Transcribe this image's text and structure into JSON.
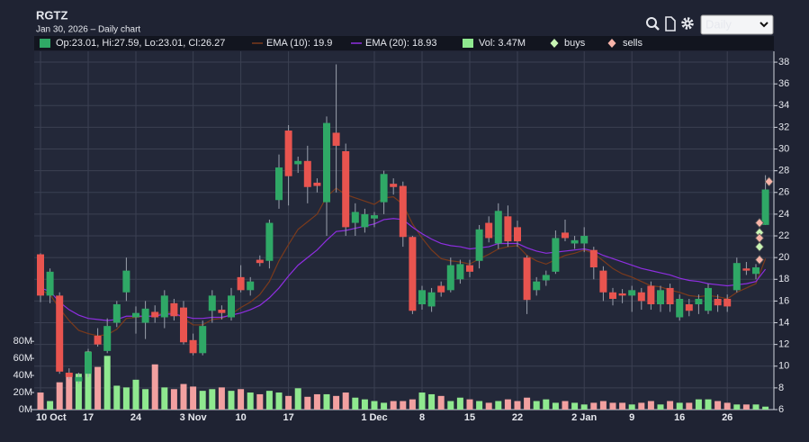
{
  "chart_data": {
    "type": "candlestick",
    "title": "RGTZ",
    "subtitle": "Jan 30, 2026 – Daily chart",
    "interval": "Daily",
    "ohlc_name": "Op:23.01, Hi:27.59, Lo:23.01, Cl:26.27",
    "up_color": "#2fa866",
    "down_color": "#e8544f",
    "categories": [
      "10 Oct",
      null,
      null,
      null,
      null,
      "17",
      null,
      null,
      null,
      null,
      "24",
      null,
      null,
      null,
      null,
      null,
      "3 Nov",
      null,
      null,
      null,
      null,
      "10",
      null,
      null,
      null,
      null,
      "17",
      null,
      null,
      null,
      null,
      null,
      null,
      null,
      null,
      "1 Dec",
      null,
      null,
      null,
      null,
      "8",
      null,
      null,
      null,
      null,
      "15",
      null,
      null,
      null,
      null,
      "22",
      null,
      null,
      null,
      null,
      null,
      null,
      "2 Jan",
      null,
      null,
      null,
      null,
      "9",
      null,
      null,
      null,
      null,
      "16",
      null,
      null,
      null,
      null,
      "26",
      null,
      null,
      null,
      null
    ],
    "open": [
      20.3,
      16.5,
      16.5,
      9.4,
      8.6,
      9.3,
      12.8,
      11.4,
      14.0,
      16.8,
      14.5,
      14.0,
      15.0,
      14.5,
      15.8,
      15.4,
      12.4,
      11.2,
      15.1,
      15.2,
      14.5,
      18.2,
      17.0,
      19.8,
      19.7,
      25.3,
      31.7,
      28.6,
      28.9,
      26.9,
      25.1,
      31.5,
      29.8,
      23.2,
      22.8,
      23.6,
      25.1,
      26.8,
      26.6,
      21.9,
      15.7,
      15.5,
      17.4,
      17.0,
      18.0,
      19.3,
      19.7,
      23.2,
      21.3,
      23.8,
      22.8,
      20.0,
      17.0,
      17.9,
      18.7,
      22.3,
      21.3,
      21.3,
      20.7,
      18.8,
      16.8,
      16.7,
      16.5,
      16.8,
      17.4,
      15.7,
      17.2,
      14.5,
      15.7,
      15.7,
      15.1,
      16.2,
      16.2,
      17.0,
      19.0,
      18.5,
      23.01
    ],
    "high": [
      20.4,
      19.0,
      16.8,
      9.8,
      9.4,
      11.6,
      13.5,
      14.4,
      16.0,
      20.0,
      15.5,
      16.0,
      15.6,
      17.0,
      16.2,
      16.0,
      13.0,
      14.2,
      17.0,
      15.6,
      17.2,
      19.3,
      18.2,
      20.2,
      23.5,
      29.5,
      32.2,
      29.3,
      30.3,
      27.3,
      33.0,
      37.8,
      30.5,
      25.0,
      24.5,
      24.2,
      28.0,
      27.3,
      27.0,
      22.0,
      17.4,
      17.2,
      17.8,
      20.0,
      19.8,
      19.8,
      23.0,
      23.8,
      25.0,
      24.8,
      23.4,
      20.2,
      18.2,
      18.8,
      22.5,
      23.5,
      22.0,
      22.8,
      21.0,
      19.2,
      17.2,
      17.1,
      17.4,
      17.2,
      17.8,
      17.4,
      17.6,
      16.6,
      16.2,
      16.6,
      17.6,
      16.6,
      16.6,
      20.0,
      19.6,
      19.4,
      27.59
    ],
    "low": [
      15.9,
      15.8,
      9.3,
      8.8,
      8.4,
      9.0,
      11.8,
      11.2,
      13.6,
      16.0,
      13.0,
      12.5,
      14.0,
      13.5,
      14.2,
      12.0,
      11.0,
      11.0,
      14.0,
      14.3,
      14.2,
      16.8,
      16.5,
      19.2,
      19.0,
      24.5,
      24.8,
      27.8,
      25.0,
      26.0,
      22.0,
      26.0,
      22.0,
      22.0,
      22.3,
      22.8,
      24.0,
      25.8,
      21.0,
      14.8,
      15.2,
      15.0,
      16.4,
      16.8,
      17.6,
      18.2,
      19.0,
      21.4,
      20.8,
      21.0,
      21.0,
      14.8,
      16.5,
      17.4,
      18.5,
      21.5,
      20.8,
      20.5,
      18.0,
      16.0,
      15.6,
      15.8,
      15.0,
      15.2,
      15.2,
      15.0,
      15.0,
      14.2,
      14.6,
      14.8,
      14.8,
      15.0,
      15.0,
      16.8,
      18.4,
      18.0,
      23.01
    ],
    "close": [
      16.5,
      18.7,
      9.5,
      9.0,
      9.0,
      11.3,
      12.0,
      13.7,
      15.7,
      18.8,
      14.9,
      15.3,
      14.5,
      16.5,
      14.6,
      12.2,
      11.2,
      13.7,
      16.5,
      14.9,
      16.5,
      17.0,
      17.8,
      19.5,
      23.2,
      28.3,
      27.5,
      28.9,
      26.5,
      26.6,
      32.4,
      30.3,
      22.8,
      24.2,
      24.0,
      23.9,
      27.7,
      26.5,
      21.9,
      15.1,
      17.0,
      16.8,
      16.8,
      19.3,
      19.4,
      18.7,
      22.6,
      21.8,
      24.3,
      21.5,
      21.5,
      16.1,
      17.8,
      18.4,
      21.8,
      21.8,
      21.6,
      22.0,
      19.1,
      16.8,
      16.2,
      16.5,
      17.0,
      16.0,
      15.7,
      17.0,
      15.7,
      16.2,
      15.1,
      16.2,
      17.2,
      15.6,
      15.5,
      19.5,
      18.8,
      19.1,
      26.27
    ],
    "ylim": [
      6,
      39
    ],
    "yticks": [
      6,
      8,
      10,
      12,
      14,
      16,
      18,
      20,
      22,
      24,
      26,
      28,
      30,
      32,
      34,
      36,
      38
    ],
    "grid": true,
    "series": [
      {
        "name": "EMA (10): 19.9",
        "color": "#7a3a1c",
        "values": [
          17.0,
          16.6,
          15.3,
          14.2,
          13.3,
          13.0,
          12.8,
          12.9,
          13.4,
          14.4,
          14.5,
          14.6,
          14.6,
          15.0,
          14.9,
          14.4,
          13.8,
          13.8,
          14.3,
          14.4,
          14.8,
          15.4,
          15.9,
          16.6,
          17.8,
          19.7,
          21.2,
          22.6,
          23.3,
          24.0,
          25.6,
          26.4,
          25.8,
          25.5,
          25.2,
          24.9,
          25.5,
          25.6,
          24.9,
          23.1,
          21.8,
          20.7,
          19.9,
          19.7,
          19.6,
          19.4,
          19.9,
          20.3,
          20.8,
          21.0,
          21.1,
          20.2,
          19.7,
          19.4,
          19.8,
          20.2,
          20.4,
          20.7,
          20.4,
          19.7,
          19.0,
          18.5,
          18.2,
          17.8,
          17.4,
          17.3,
          17.0,
          16.8,
          16.5,
          16.4,
          16.5,
          16.4,
          16.2,
          16.8,
          17.2,
          17.6,
          19.9
        ]
      },
      {
        "name": "EMA (20): 18.93",
        "color": "#8e2ee0",
        "values": [
          17.2,
          16.9,
          15.9,
          15.2,
          14.7,
          14.4,
          14.3,
          14.2,
          14.3,
          14.6,
          14.6,
          14.6,
          14.6,
          14.8,
          14.8,
          14.6,
          14.4,
          14.4,
          14.5,
          14.5,
          14.7,
          14.9,
          15.2,
          15.6,
          16.3,
          17.2,
          18.3,
          19.3,
          20.0,
          20.7,
          21.6,
          22.4,
          22.5,
          22.7,
          22.9,
          23.1,
          23.5,
          23.6,
          23.5,
          22.8,
          22.2,
          21.7,
          21.3,
          21.1,
          21.0,
          20.8,
          20.9,
          21.0,
          21.3,
          21.3,
          21.3,
          20.9,
          20.6,
          20.4,
          20.5,
          20.6,
          20.7,
          20.8,
          20.6,
          20.2,
          19.9,
          19.6,
          19.3,
          19.0,
          18.8,
          18.6,
          18.4,
          18.1,
          17.9,
          17.8,
          17.6,
          17.5,
          17.4,
          17.5,
          17.6,
          17.8,
          18.93
        ]
      }
    ],
    "volume": {
      "name": "Vol: 3.47M",
      "up_color": "#8fe88f",
      "down_color": "#f2a0a0",
      "values": [
        20,
        10,
        32,
        42,
        42,
        68,
        50,
        63,
        28,
        26,
        35,
        24,
        53,
        26,
        24,
        30,
        27,
        22,
        24,
        26,
        22,
        24,
        20,
        18,
        22,
        20,
        16,
        25,
        15,
        18,
        18,
        16,
        20,
        14,
        12,
        10,
        8,
        10,
        10,
        12,
        20,
        18,
        16,
        10,
        14,
        12,
        10,
        8,
        10,
        12,
        10,
        14,
        10,
        12,
        8,
        10,
        8,
        6,
        8,
        10,
        8,
        8,
        6,
        8,
        10,
        6,
        10,
        8,
        8,
        12,
        12,
        10,
        8,
        6,
        6,
        6,
        3.47
      ],
      "ylim": [
        0,
        420
      ],
      "yticks": [
        {
          "value": 0,
          "label": "0M"
        },
        {
          "value": 20,
          "label": "20M"
        },
        {
          "value": 40,
          "label": "40M"
        },
        {
          "value": 60,
          "label": "60M"
        },
        {
          "value": 80,
          "label": "80M"
        }
      ]
    },
    "markers": [
      {
        "name": "buys",
        "color": "#c8f5b4",
        "values": [
          null,
          null,
          null,
          null,
          null,
          null,
          null,
          null,
          null,
          null,
          null,
          null,
          null,
          null,
          null,
          null,
          null,
          null,
          null,
          null,
          null,
          null,
          null,
          null,
          null,
          null,
          null,
          null,
          null,
          null,
          null,
          null,
          null,
          null,
          null,
          null,
          null,
          null,
          null,
          null,
          null,
          null,
          null,
          null,
          null,
          null,
          null,
          null,
          null,
          null,
          null,
          null,
          null,
          null,
          null,
          null,
          null,
          null,
          null,
          null,
          null,
          null,
          null,
          null,
          null,
          null,
          null,
          null,
          null,
          null,
          null,
          null,
          null,
          null,
          null,
          [
            22.3,
            21.0
          ],
          null
        ]
      },
      {
        "name": "sells",
        "color": "#f7b3a8",
        "values": [
          null,
          null,
          null,
          null,
          null,
          null,
          null,
          null,
          null,
          null,
          null,
          null,
          null,
          null,
          null,
          null,
          null,
          null,
          null,
          null,
          null,
          null,
          null,
          null,
          null,
          null,
          null,
          null,
          null,
          null,
          null,
          null,
          null,
          null,
          null,
          null,
          null,
          null,
          null,
          null,
          null,
          null,
          null,
          null,
          null,
          null,
          null,
          null,
          null,
          null,
          null,
          null,
          null,
          null,
          null,
          null,
          null,
          null,
          null,
          null,
          null,
          null,
          null,
          null,
          null,
          null,
          null,
          null,
          null,
          null,
          null,
          null,
          null,
          null,
          null,
          [
            23.2,
            21.8,
            19.8
          ],
          [
            27.0
          ]
        ]
      }
    ]
  }
}
